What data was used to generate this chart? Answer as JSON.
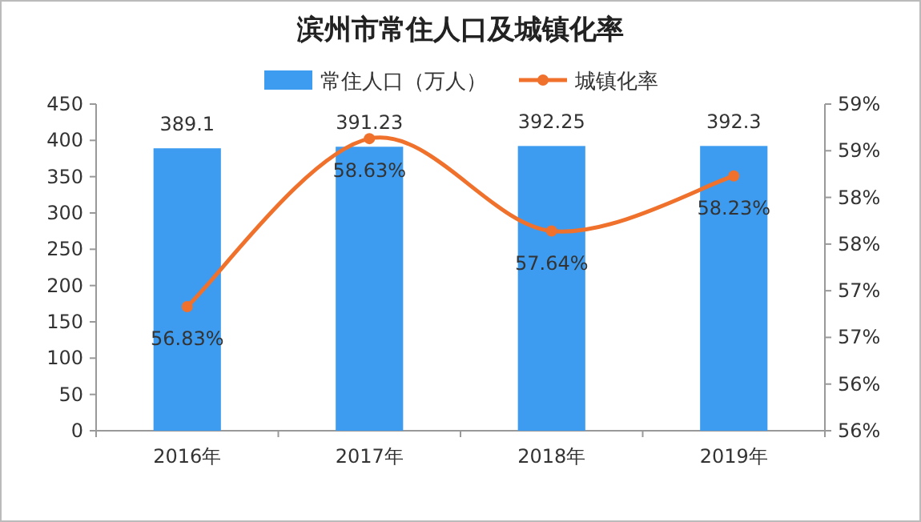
{
  "chart_data": {
    "type": "bar",
    "title": "滨州市常住人口及城镇化率",
    "categories": [
      "2016年",
      "2017年",
      "2018年",
      "2019年"
    ],
    "series": [
      {
        "name": "常住人口（万人）",
        "color": "#3d9cf0",
        "values": [
          389.1,
          391.23,
          392.25,
          392.3
        ]
      },
      {
        "name": "城镇化率",
        "type": "line",
        "axis": "y2",
        "color": "#f0712c",
        "values": [
          56.83,
          58.63,
          57.64,
          58.23
        ],
        "value_labels": [
          "56.83%",
          "58.63%",
          "57.64%",
          "58.23%"
        ]
      }
    ],
    "ylim": [
      0,
      450
    ],
    "yticks": [
      0,
      50,
      100,
      150,
      200,
      250,
      300,
      350,
      400,
      450
    ],
    "y2lim": [
      55.5,
      59
    ],
    "y2ticks": [
      {
        "value": 55.5,
        "label": "56%"
      },
      {
        "value": 56,
        "label": "56%"
      },
      {
        "value": 56.5,
        "label": "57%"
      },
      {
        "value": 57,
        "label": "57%"
      },
      {
        "value": 57.5,
        "label": "58%"
      },
      {
        "value": 58,
        "label": "58%"
      },
      {
        "value": 58.5,
        "label": "59%"
      },
      {
        "value": 59,
        "label": "59%"
      }
    ],
    "data_labels": true,
    "legend": "top",
    "grid": false,
    "marker": "circle",
    "line_style": "solid"
  }
}
